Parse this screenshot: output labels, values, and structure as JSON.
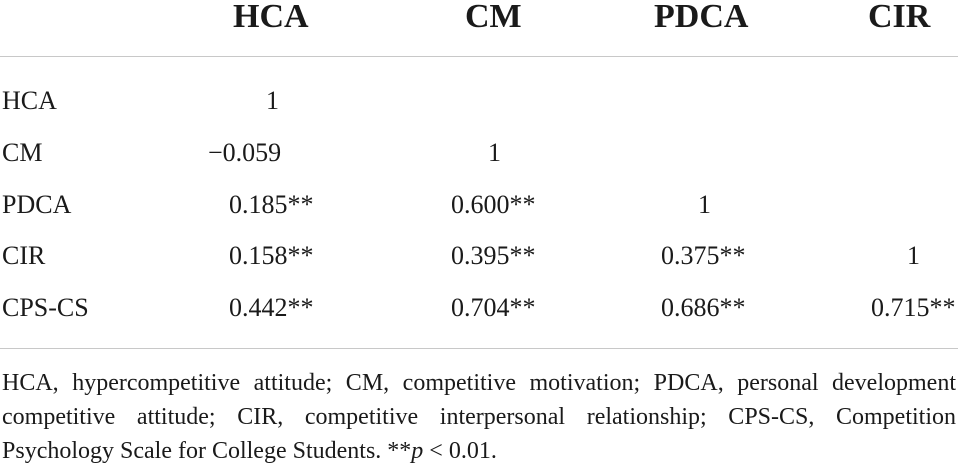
{
  "table": {
    "columns": [
      "HCA",
      "CM",
      "PDCA",
      "CIR"
    ],
    "rows": [
      {
        "label": "HCA",
        "cells": [
          "1",
          "",
          "",
          ""
        ]
      },
      {
        "label": "CM",
        "cells": [
          "−0.059",
          "1",
          "",
          ""
        ]
      },
      {
        "label": "PDCA",
        "cells": [
          "0.185**",
          "0.600**",
          "1",
          ""
        ]
      },
      {
        "label": "CIR",
        "cells": [
          "0.158**",
          "0.395**",
          "0.375**",
          "1"
        ]
      },
      {
        "label": "CPS-CS",
        "cells": [
          "0.442**",
          "0.704**",
          "0.686**",
          "0.715**"
        ]
      }
    ]
  },
  "note": {
    "text": "HCA, hypercompetitive attitude; CM, competitive motivation; PDCA, personal development competitive attitude; CIR, competitive interpersonal relationship; CPS-CS, Competition Psychology Scale for College Students. **",
    "p_symbol": "p",
    "p_rest": " < 0.01."
  }
}
